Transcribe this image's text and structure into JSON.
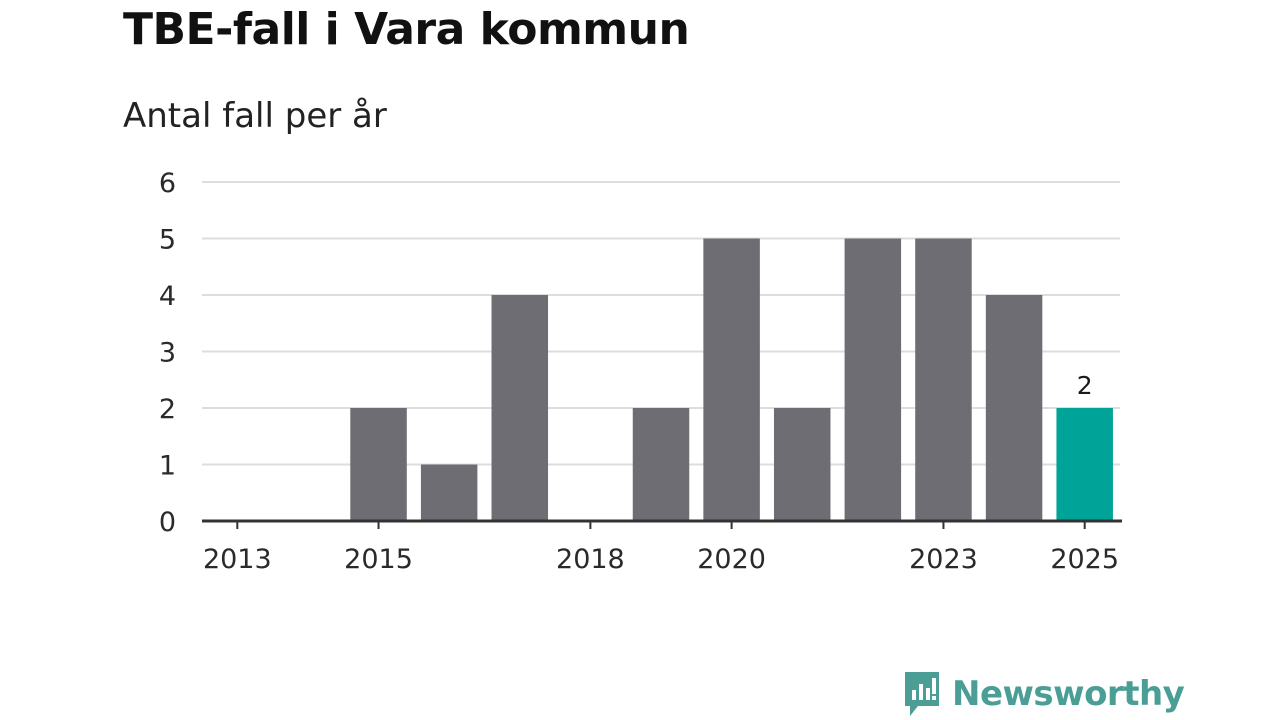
{
  "title": "TBE-fall i Vara kommun",
  "subtitle": "Antal fall per år",
  "brand": {
    "name": "Newsworthy",
    "icon": "newsworthy-logo-icon",
    "color": "#4a9e96"
  },
  "colors": {
    "bar": "#6e6d73",
    "highlight": "#00a398",
    "grid": "#dddddd",
    "axis": "#333333"
  },
  "chart_data": {
    "type": "bar",
    "title": "TBE-fall i Vara kommun",
    "subtitle": "Antal fall per år",
    "xlabel": "",
    "ylabel": "",
    "categories": [
      "2013",
      "2014",
      "2015",
      "2016",
      "2017",
      "2018",
      "2019",
      "2020",
      "2021",
      "2022",
      "2023",
      "2024",
      "2025"
    ],
    "values": [
      0,
      0,
      2,
      1,
      4,
      0,
      2,
      5,
      2,
      5,
      5,
      4,
      2
    ],
    "highlight_index": 12,
    "highlight_label": "2",
    "x_tick_labels": [
      "2013",
      "2015",
      "2018",
      "2020",
      "2023",
      "2025"
    ],
    "y_ticks": [
      0,
      1,
      2,
      3,
      4,
      5,
      6
    ],
    "ylim": [
      0,
      6
    ],
    "grid": true,
    "legend": "none"
  }
}
